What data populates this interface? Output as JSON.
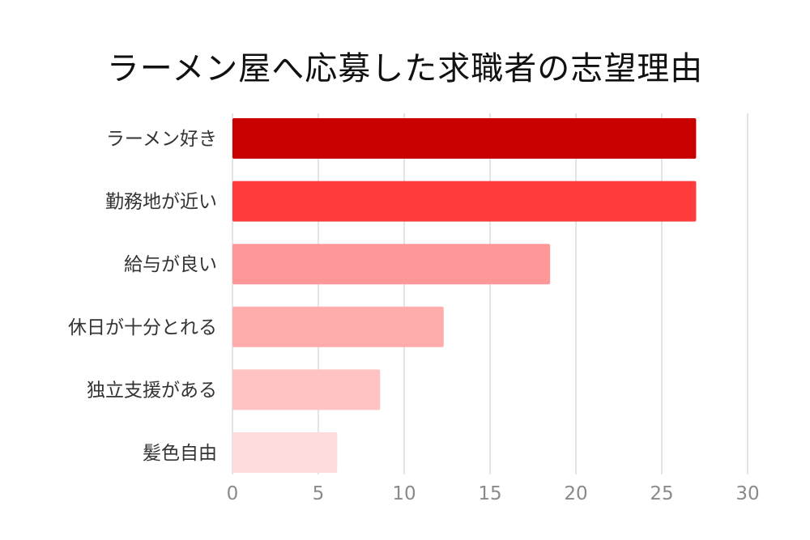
{
  "chart_data": {
    "type": "bar",
    "orientation": "horizontal",
    "title": "ラーメン屋へ応募した求職者の志望理由",
    "categories": [
      "ラーメン好き",
      "勤務地が近い",
      "給与が良い",
      "休日が十分とれる",
      "独立支援がある",
      "髪色自由"
    ],
    "values": [
      27,
      27,
      18.5,
      12.3,
      8.6,
      6.1
    ],
    "colors": [
      "#c90000",
      "#ff3b3b",
      "#fe9898",
      "#feacac",
      "#ffc3c3",
      "#ffdcdc"
    ],
    "xlim": [
      0,
      30
    ],
    "xticks": [
      0,
      5,
      10,
      15,
      20,
      25,
      30
    ],
    "xtick_labels": [
      "0",
      "5",
      "10",
      "15",
      "20",
      "25",
      "30"
    ],
    "grid": "vertical",
    "legend": "none"
  }
}
